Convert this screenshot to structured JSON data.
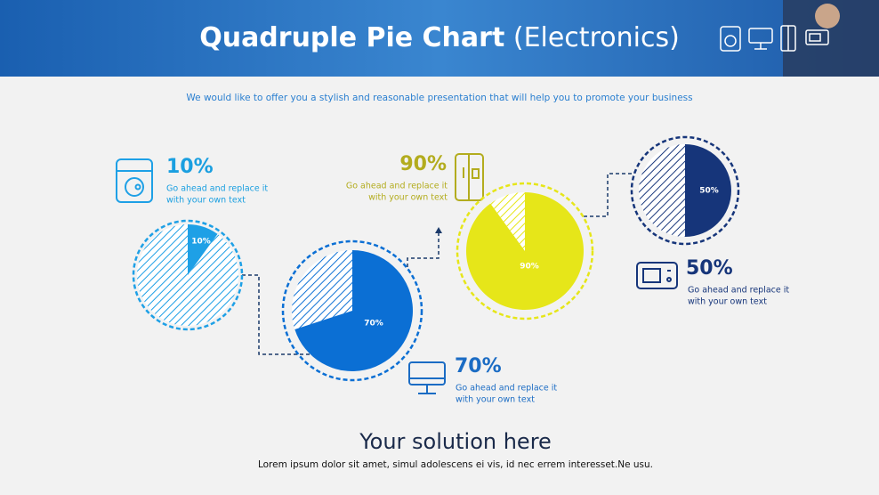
{
  "header": {
    "title": "Quadruple Pie Chart",
    "title_suffix": "(Electronics)"
  },
  "subtitle": "We would like to offer you a stylish and reasonable presentation that will help you to promote your business",
  "pies": [
    {
      "value": 10,
      "label": "10%",
      "text_lines": [
        "Go ahead and replace it",
        "with your own text"
      ],
      "color": "#1ea0e6",
      "label_color": "#1a9fe0"
    },
    {
      "value": 70,
      "label": "70%",
      "text_lines": [
        "Go ahead and replace it",
        "with your own text"
      ],
      "color": "#0b6fd4",
      "label_color": "#1b6cc4"
    },
    {
      "value": 90,
      "label": "90%",
      "text_lines": [
        "Go ahead and replace it",
        "with your own text"
      ],
      "color": "#e6e619",
      "label_color": "#b3ac1e"
    },
    {
      "value": 50,
      "label": "50%",
      "text_lines": [
        "Go ahead and replace it",
        "with your own text"
      ],
      "color": "#16357a",
      "label_color": "#16357a"
    }
  ],
  "footer": {
    "title": "Your solution here",
    "text": "Lorem ipsum dolor sit amet, simul adolescens ei vis, id nec errem interesset.Ne usu."
  }
}
